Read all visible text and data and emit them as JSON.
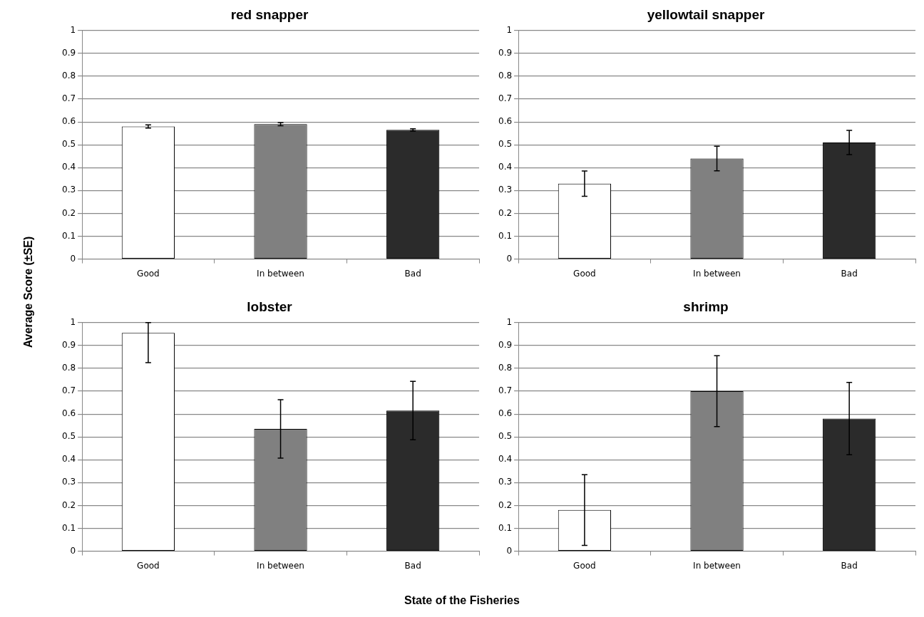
{
  "chart_data": [
    {
      "type": "bar",
      "title": "red snapper",
      "ylabel": "Average Score (±SE)",
      "xlabel": "State of the Fisheries",
      "categories": [
        "Good",
        "In between",
        "Bad"
      ],
      "values": [
        0.58,
        0.59,
        0.565
      ],
      "colors": [
        "#ffffff",
        "#808080",
        "#2b2b2b"
      ],
      "errors": [
        0.007,
        0.007,
        0.005
      ],
      "ylim": [
        0,
        1
      ],
      "yticks": [
        0,
        0.1,
        0.2,
        0.3,
        0.4,
        0.5,
        0.6,
        0.7,
        0.8,
        0.9,
        1
      ],
      "grid": "y",
      "legend": false
    },
    {
      "type": "bar",
      "title": "yellowtail snapper",
      "categories": [
        "Good",
        "In between",
        "Bad"
      ],
      "values": [
        0.33,
        0.44,
        0.51
      ],
      "colors": [
        "#ffffff",
        "#808080",
        "#2b2b2b"
      ],
      "errors": [
        0.055,
        0.054,
        0.053
      ],
      "ylim": [
        0,
        1
      ],
      "yticks": [
        0,
        0.1,
        0.2,
        0.3,
        0.4,
        0.5,
        0.6,
        0.7,
        0.8,
        0.9,
        1
      ],
      "grid": "y",
      "legend": false
    },
    {
      "type": "bar",
      "title": "lobster",
      "categories": [
        "Good",
        "In between",
        "Bad"
      ],
      "values": [
        0.955,
        0.535,
        0.615
      ],
      "colors": [
        "#ffffff",
        "#808080",
        "#2b2b2b"
      ],
      "errors": [
        [
          0.825,
          1
        ],
        0.128,
        0.128
      ],
      "ylim": [
        0,
        1
      ],
      "yticks": [
        0,
        0.1,
        0.2,
        0.3,
        0.4,
        0.5,
        0.6,
        0.7,
        0.8,
        0.9,
        1
      ],
      "grid": "y",
      "legend": false
    },
    {
      "type": "bar",
      "title": "shrimp",
      "categories": [
        "Good",
        "In between",
        "Bad"
      ],
      "values": [
        0.18,
        0.7,
        0.58
      ],
      "colors": [
        "#ffffff",
        "#808080",
        "#2b2b2b"
      ],
      "errors": [
        0.155,
        0.155,
        0.158
      ],
      "ylim": [
        0,
        1
      ],
      "yticks": [
        0,
        0.1,
        0.2,
        0.3,
        0.4,
        0.5,
        0.6,
        0.7,
        0.8,
        0.9,
        1
      ],
      "grid": "y",
      "legend": false
    }
  ]
}
